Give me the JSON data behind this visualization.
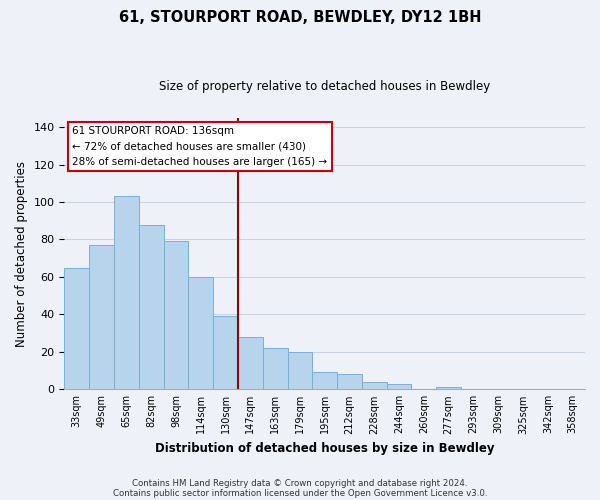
{
  "title": "61, STOURPORT ROAD, BEWDLEY, DY12 1BH",
  "subtitle": "Size of property relative to detached houses in Bewdley",
  "xlabel": "Distribution of detached houses by size in Bewdley",
  "ylabel": "Number of detached properties",
  "footer_line1": "Contains HM Land Registry data © Crown copyright and database right 2024.",
  "footer_line2": "Contains public sector information licensed under the Open Government Licence v3.0.",
  "bar_labels": [
    "33sqm",
    "49sqm",
    "65sqm",
    "82sqm",
    "98sqm",
    "114sqm",
    "130sqm",
    "147sqm",
    "163sqm",
    "179sqm",
    "195sqm",
    "212sqm",
    "228sqm",
    "244sqm",
    "260sqm",
    "277sqm",
    "293sqm",
    "309sqm",
    "325sqm",
    "342sqm",
    "358sqm"
  ],
  "bar_values": [
    65,
    77,
    103,
    88,
    79,
    60,
    39,
    28,
    22,
    20,
    9,
    8,
    4,
    3,
    0,
    1,
    0,
    0,
    0,
    0,
    0
  ],
  "bar_color": "#b8d4ec",
  "bar_edge_color": "#7aafd4",
  "ylim": [
    0,
    145
  ],
  "yticks": [
    0,
    20,
    40,
    60,
    80,
    100,
    120,
    140
  ],
  "vline_color": "#990000",
  "annotation_title": "61 STOURPORT ROAD: 136sqm",
  "annotation_line1": "← 72% of detached houses are smaller (430)",
  "annotation_line2": "28% of semi-detached houses are larger (165) →",
  "background_color": "#eef2f8",
  "grid_color": "#c8d4e8"
}
